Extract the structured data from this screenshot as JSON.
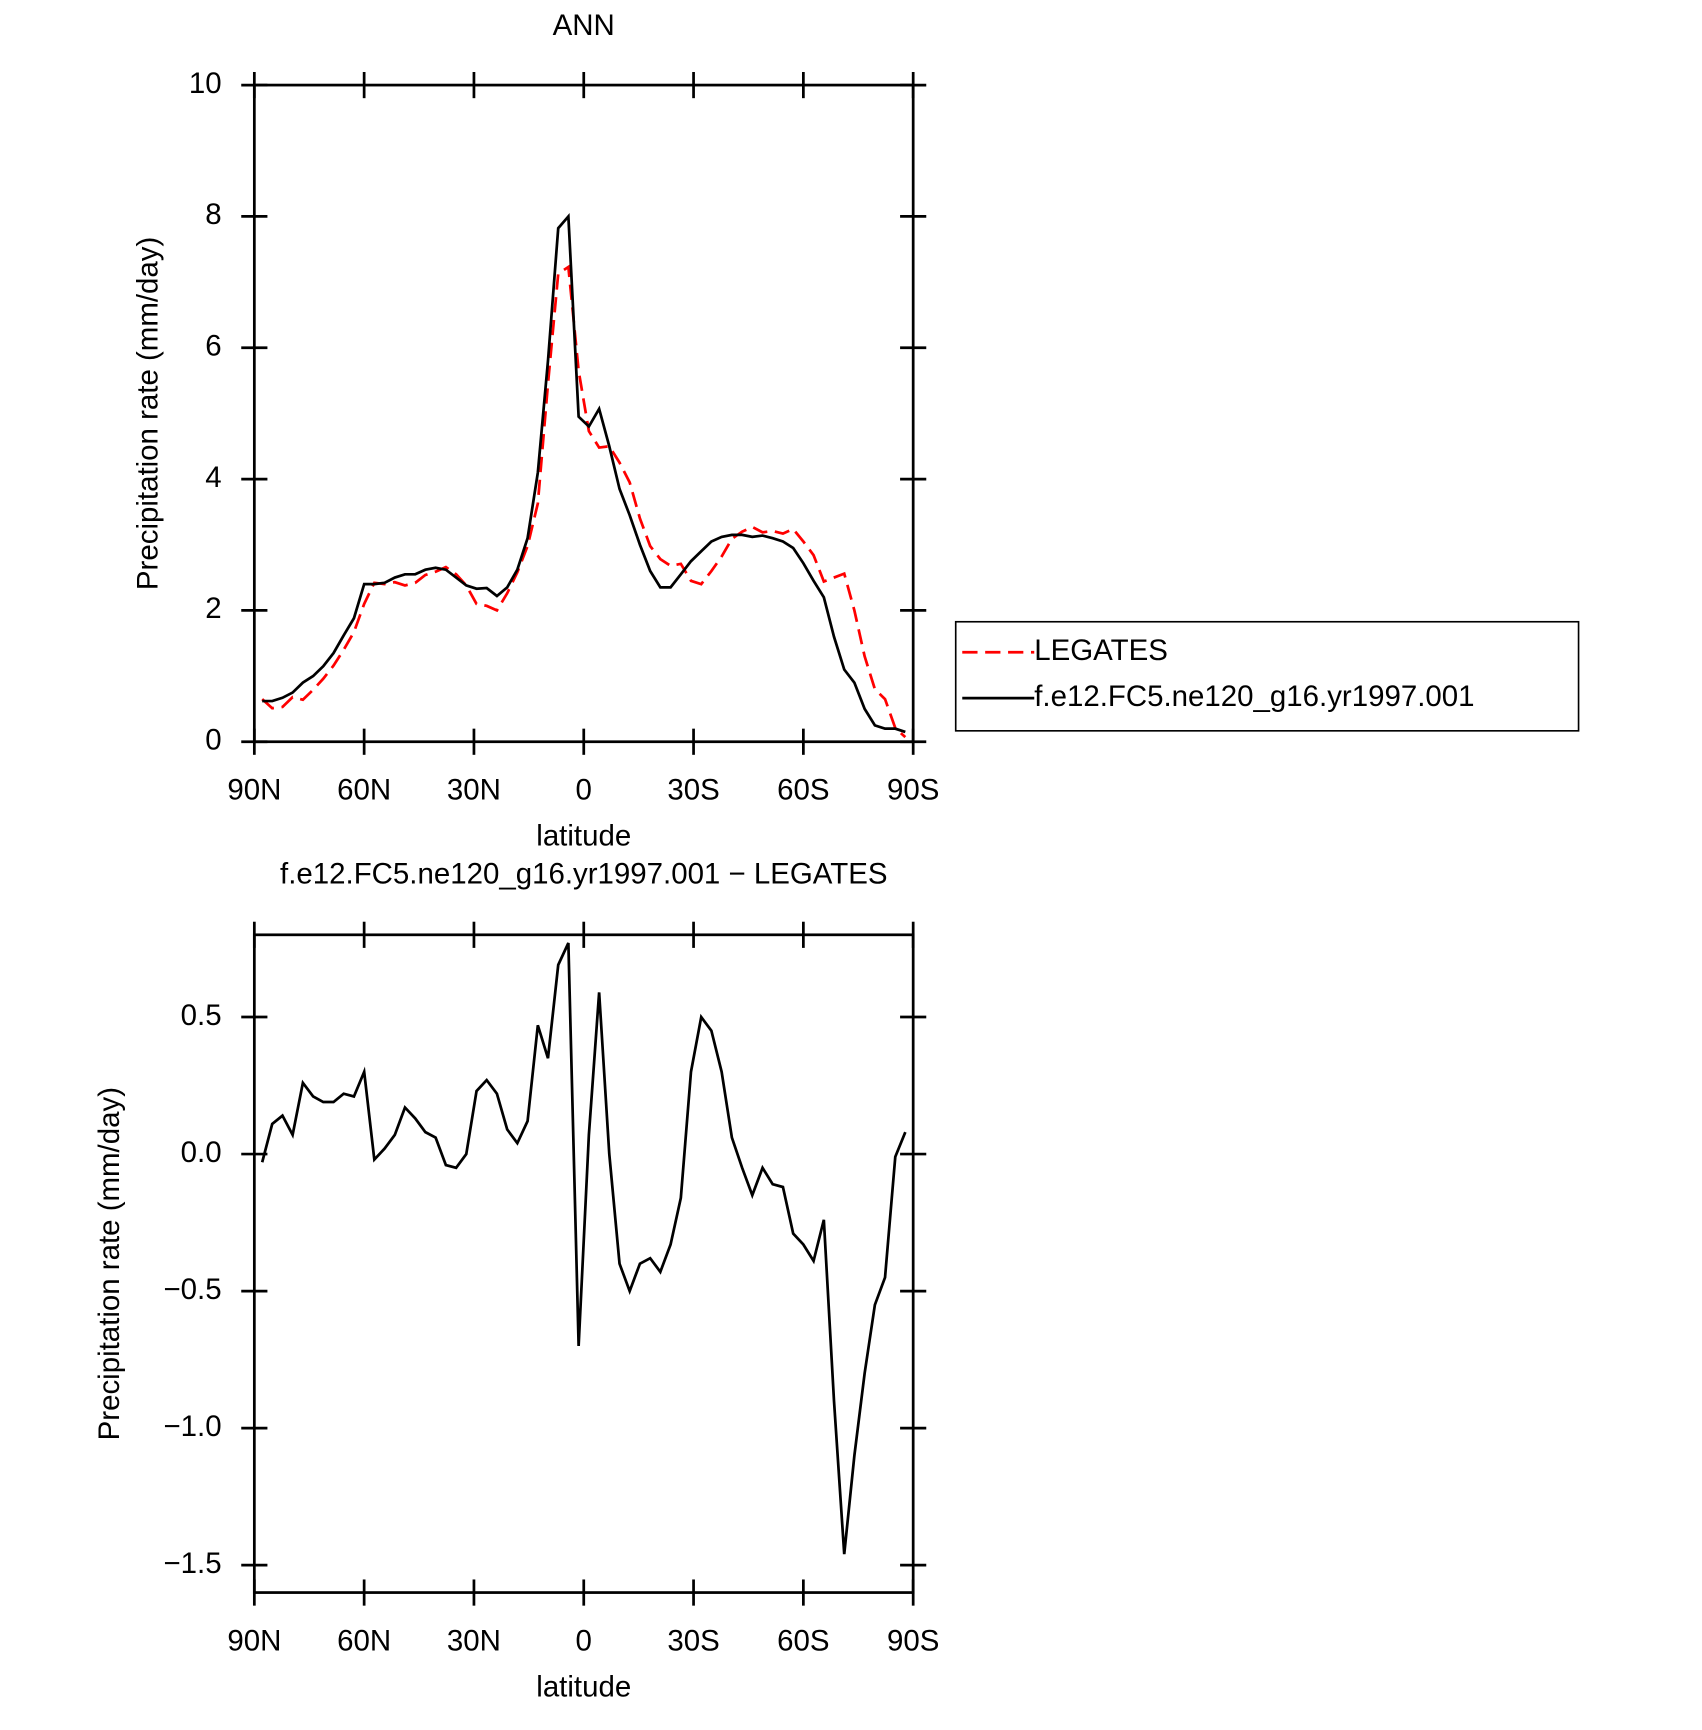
{
  "chart_data": [
    {
      "type": "line",
      "title": "ANN",
      "x_label": "latitude",
      "y_label": "Precipitation rate (mm/day)",
      "x": [
        87.86,
        85.1,
        82.31,
        79.53,
        76.74,
        73.95,
        71.16,
        68.37,
        65.58,
        62.79,
        60.0,
        57.21,
        54.42,
        51.63,
        48.84,
        46.05,
        43.26,
        40.47,
        37.67,
        34.88,
        32.09,
        29.3,
        26.51,
        23.72,
        20.93,
        18.14,
        15.35,
        12.56,
        9.77,
        6.98,
        4.19,
        1.4,
        -1.4,
        -4.19,
        -6.98,
        -9.77,
        -12.56,
        -15.35,
        -18.14,
        -20.93,
        -23.72,
        -26.51,
        -29.3,
        -32.09,
        -34.88,
        -37.67,
        -40.47,
        -43.26,
        -46.05,
        -48.84,
        -51.63,
        -54.42,
        -57.21,
        -60.0,
        -62.79,
        -65.58,
        -68.37,
        -71.16,
        -73.95,
        -76.74,
        -79.53,
        -82.31,
        -85.1,
        -87.86
      ],
      "series": [
        {
          "name": "LEGATES",
          "color": "#ff0000",
          "style": "dashed",
          "values": [
            0.65,
            0.51,
            0.53,
            0.68,
            0.64,
            0.79,
            0.96,
            1.16,
            1.4,
            1.67,
            2.1,
            2.42,
            2.4,
            2.43,
            2.38,
            2.42,
            2.54,
            2.59,
            2.66,
            2.55,
            2.38,
            2.1,
            2.07,
            2.0,
            2.26,
            2.58,
            2.98,
            3.63,
            5.45,
            7.13,
            7.23,
            5.65,
            4.73,
            4.48,
            4.5,
            4.25,
            3.95,
            3.4,
            2.98,
            2.78,
            2.68,
            2.71,
            2.45,
            2.4,
            2.6,
            2.82,
            3.09,
            3.2,
            3.27,
            3.19,
            3.21,
            3.17,
            3.24,
            3.05,
            2.84,
            2.44,
            2.5,
            2.56,
            2.0,
            1.3,
            0.8,
            0.65,
            0.21,
            0.07
          ]
        },
        {
          "name": "f.e12.FC5.ne120_g16.yr1997.001",
          "color": "#000000",
          "style": "solid",
          "values": [
            0.62,
            0.62,
            0.67,
            0.75,
            0.9,
            1.0,
            1.15,
            1.35,
            1.62,
            1.88,
            2.4,
            2.4,
            2.42,
            2.5,
            2.55,
            2.55,
            2.62,
            2.65,
            2.62,
            2.5,
            2.38,
            2.33,
            2.34,
            2.22,
            2.35,
            2.62,
            3.1,
            4.1,
            5.8,
            7.82,
            8.0,
            4.95,
            4.8,
            5.07,
            4.5,
            3.85,
            3.45,
            3.0,
            2.6,
            2.35,
            2.35,
            2.55,
            2.75,
            2.9,
            3.05,
            3.12,
            3.15,
            3.15,
            3.12,
            3.14,
            3.1,
            3.05,
            2.95,
            2.72,
            2.45,
            2.2,
            1.6,
            1.1,
            0.9,
            0.5,
            0.25,
            0.2,
            0.2,
            0.15
          ]
        }
      ],
      "xlim": [
        90,
        -90
      ],
      "ylim": [
        0,
        10
      ],
      "xticks": [
        {
          "value": 90,
          "label": "90N"
        },
        {
          "value": 60,
          "label": "60N"
        },
        {
          "value": 30,
          "label": "30N"
        },
        0,
        {
          "value": -30,
          "label": "30S"
        },
        {
          "value": -60,
          "label": "60S"
        },
        {
          "value": -90,
          "label": "90S"
        }
      ],
      "yticks": [
        0,
        2,
        4,
        6,
        8,
        10
      ],
      "legend": "outside-right"
    },
    {
      "type": "line",
      "title": "f.e12.FC5.ne120_g16.yr1997.001 − LEGATES",
      "x_label": "latitude",
      "y_label": "Precipitation rate (mm/day)",
      "x": [
        87.86,
        85.1,
        82.31,
        79.53,
        76.74,
        73.95,
        71.16,
        68.37,
        65.58,
        62.79,
        60.0,
        57.21,
        54.42,
        51.63,
        48.84,
        46.05,
        43.26,
        40.47,
        37.67,
        34.88,
        32.09,
        29.3,
        26.51,
        23.72,
        20.93,
        18.14,
        15.35,
        12.56,
        9.77,
        6.98,
        4.19,
        1.4,
        -1.4,
        -4.19,
        -6.98,
        -9.77,
        -12.56,
        -15.35,
        -18.14,
        -20.93,
        -23.72,
        -26.51,
        -29.3,
        -32.09,
        -34.88,
        -37.67,
        -40.47,
        -43.26,
        -46.05,
        -48.84,
        -51.63,
        -54.42,
        -57.21,
        -60.0,
        -62.79,
        -65.58,
        -68.37,
        -71.16,
        -73.95,
        -76.74,
        -79.53,
        -82.31,
        -85.1,
        -87.86
      ],
      "color": "#000000",
      "values": [
        -0.03,
        0.11,
        0.14,
        0.07,
        0.26,
        0.21,
        0.19,
        0.19,
        0.22,
        0.21,
        0.3,
        -0.02,
        0.02,
        0.07,
        0.17,
        0.13,
        0.08,
        0.06,
        -0.04,
        -0.05,
        0.0,
        0.23,
        0.27,
        0.22,
        0.09,
        0.04,
        0.12,
        0.47,
        0.35,
        0.69,
        0.77,
        -0.7,
        0.07,
        0.59,
        0.0,
        -0.4,
        -0.5,
        -0.4,
        -0.38,
        -0.43,
        -0.33,
        -0.16,
        0.3,
        0.5,
        0.45,
        0.3,
        0.06,
        -0.05,
        -0.15,
        -0.05,
        -0.11,
        -0.12,
        -0.29,
        -0.33,
        -0.39,
        -0.24,
        -0.9,
        -1.46,
        -1.1,
        -0.8,
        -0.55,
        -0.45,
        -0.01,
        0.08
      ],
      "xlim": [
        90,
        -90
      ],
      "ylim": [
        -1.6,
        0.8
      ],
      "xticks": [
        {
          "value": 90,
          "label": "90N"
        },
        {
          "value": 60,
          "label": "60N"
        },
        {
          "value": 30,
          "label": "30N"
        },
        0,
        {
          "value": -30,
          "label": "30S"
        },
        {
          "value": -60,
          "label": "60S"
        },
        {
          "value": -90,
          "label": "90S"
        }
      ],
      "yticks": [
        {
          "value": -1.5,
          "label": "−1.5"
        },
        {
          "value": -1.0,
          "label": "−1.0"
        },
        {
          "value": -0.5,
          "label": "−0.5"
        },
        {
          "value": 0.0,
          "label": "0.0"
        },
        0.5
      ]
    }
  ]
}
